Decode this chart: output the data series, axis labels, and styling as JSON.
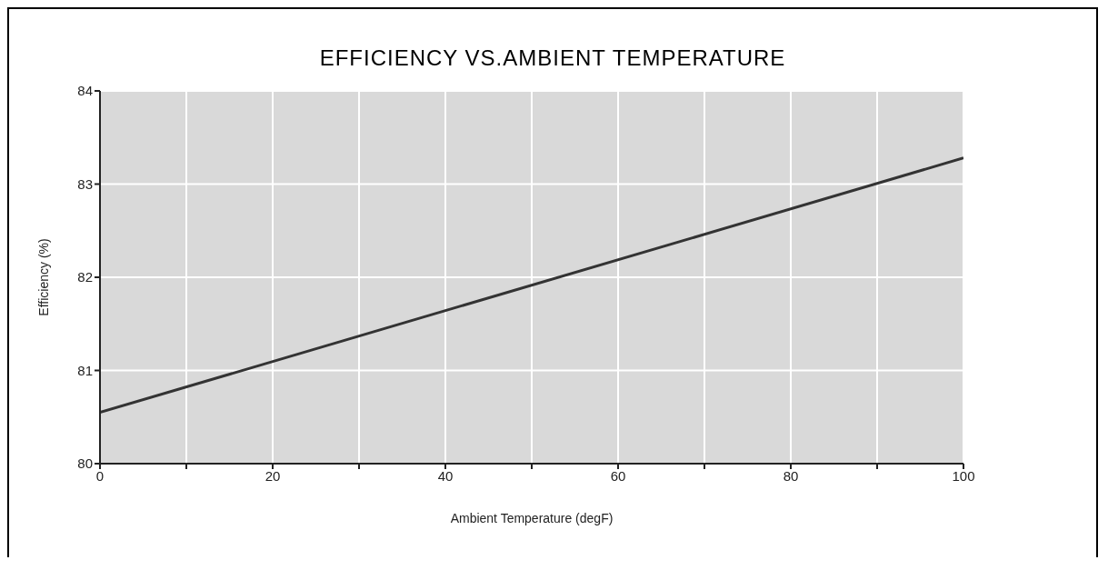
{
  "chart_data": {
    "type": "line",
    "title": "EFFICIENCY VS.AMBIENT TEMPERATURE",
    "xlabel": "Ambient Temperature (degF)",
    "ylabel": "Efficiency (%)",
    "x": [
      0,
      100
    ],
    "series": [
      {
        "color": "#333333",
        "values": [
          80.55,
          83.28
        ]
      }
    ],
    "xlim": [
      0,
      100
    ],
    "xticks": [
      0,
      {
        "value": 10,
        "label": null
      },
      20,
      {
        "value": 30,
        "label": null
      },
      40,
      {
        "value": 50,
        "label": null
      },
      60,
      {
        "value": 70,
        "label": null
      },
      80,
      {
        "value": 90,
        "label": null
      },
      100
    ],
    "ylim": [
      80,
      84
    ],
    "yticks": [
      80,
      81,
      82,
      83,
      84
    ],
    "grid": true,
    "marker": "none",
    "line_style": "solid"
  }
}
